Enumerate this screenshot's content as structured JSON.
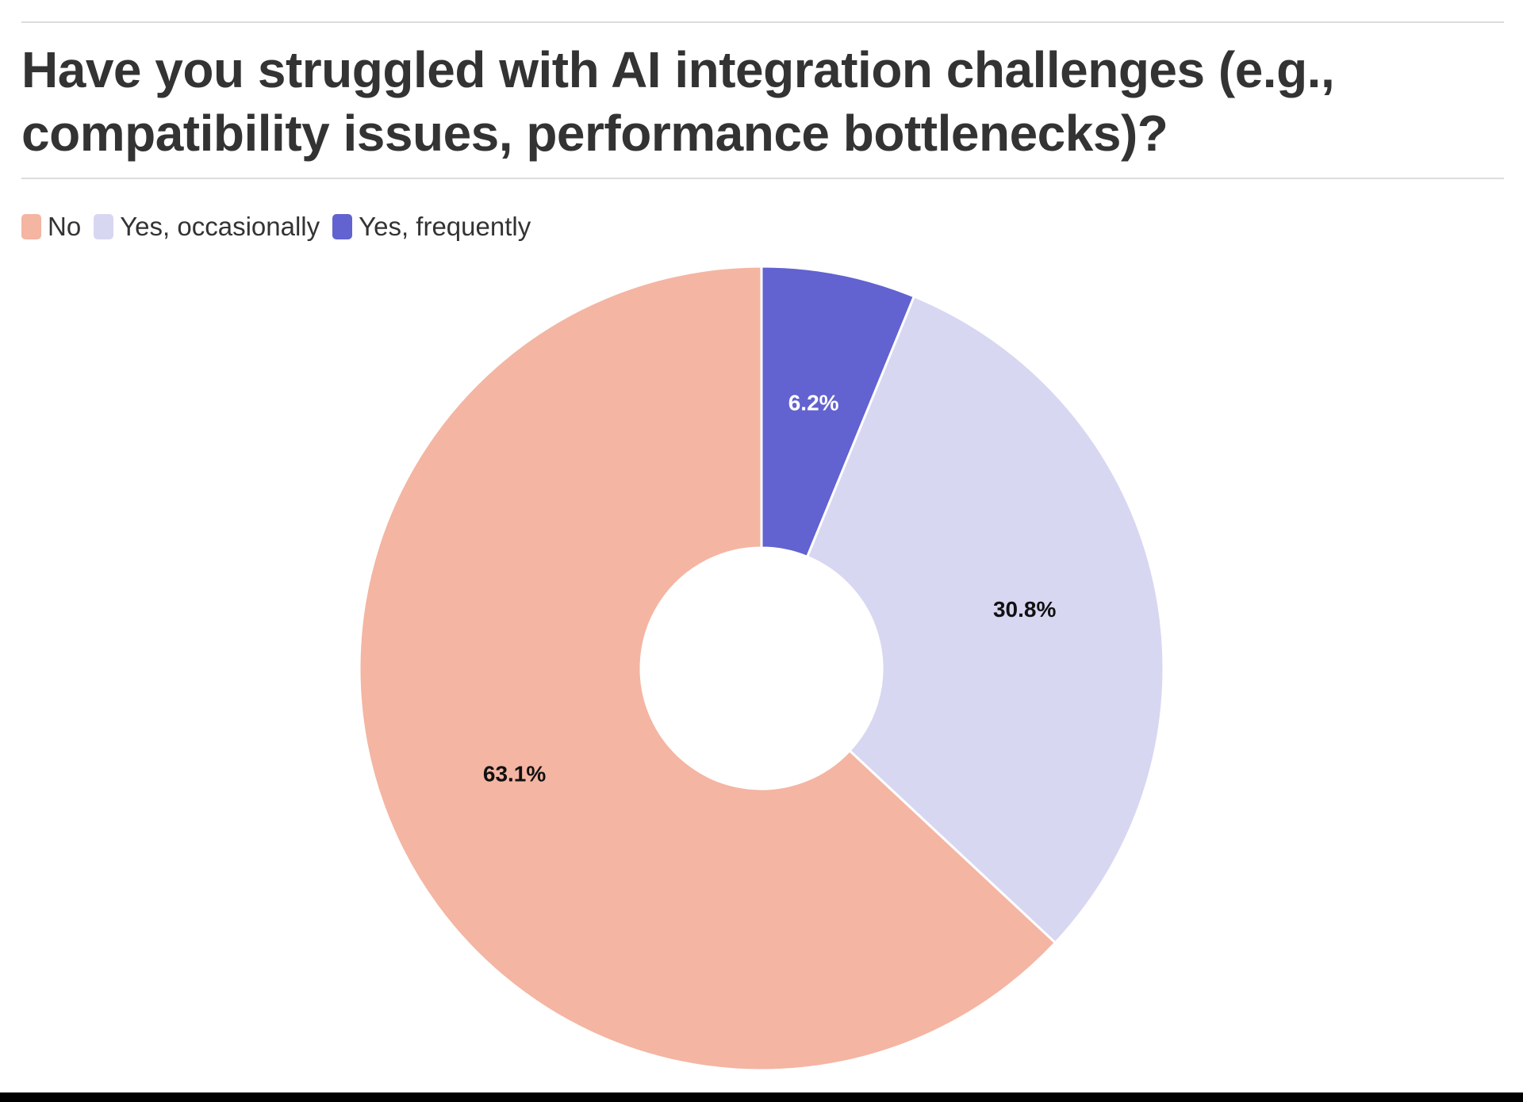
{
  "chart_data": {
    "type": "pie",
    "title": "Have you struggled with AI integration challenges (e.g., compatibility issues, performance bottlenecks)?",
    "donut": true,
    "legend_position": "top-left",
    "categories": [
      "No",
      "Yes, occasionally",
      "Yes, frequently"
    ],
    "values": [
      63.1,
      30.8,
      6.2
    ],
    "labels": [
      "63.1%",
      "30.8%",
      "6.2%"
    ],
    "colors": [
      "#f4b5a2",
      "#d8d7f2",
      "#6262d0"
    ],
    "label_colors": [
      "#111111",
      "#111111",
      "#ffffff"
    ]
  }
}
